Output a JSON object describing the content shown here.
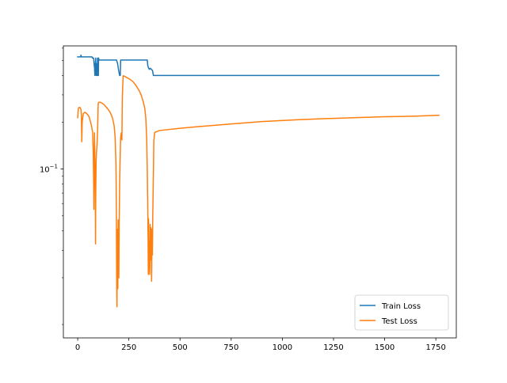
{
  "chart_data": {
    "type": "line",
    "title": "",
    "xlabel": "",
    "ylabel": "",
    "y_scale": "log",
    "xlim": [
      -70,
      1850
    ],
    "ylim": [
      0.0082,
      0.62
    ],
    "x_ticks": [
      0,
      250,
      500,
      750,
      1000,
      1250,
      1500,
      1750
    ],
    "x_tick_labels": [
      "0",
      "250",
      "500",
      "750",
      "1000",
      "1250",
      "1500",
      "1750"
    ],
    "y_major_ticks": [
      0.1
    ],
    "y_tick_labels": [
      {
        "base": "10",
        "exp": "−1"
      }
    ],
    "y_minor_ticks": [
      0.01,
      0.02,
      0.03,
      0.04,
      0.05,
      0.06,
      0.07,
      0.08,
      0.09,
      0.2,
      0.3,
      0.4,
      0.5,
      0.6
    ],
    "grid": false,
    "legend": {
      "position": "lower-right"
    },
    "series": [
      {
        "name": "Train Loss",
        "color": "#1f77b4",
        "points": [
          [
            0,
            0.5268
          ],
          [
            14,
            0.5268
          ],
          [
            16,
            0.541
          ],
          [
            18,
            0.5268
          ],
          [
            70,
            0.5268
          ],
          [
            72,
            0.518
          ],
          [
            78,
            0.518
          ],
          [
            80,
            0.476
          ],
          [
            82,
            0.451
          ],
          [
            84,
            0.4
          ],
          [
            86,
            0.476
          ],
          [
            88,
            0.518
          ],
          [
            90,
            0.4
          ],
          [
            92,
            0.476
          ],
          [
            94,
            0.4
          ],
          [
            96,
            0.4
          ],
          [
            97,
            0.518
          ],
          [
            98,
            0.476
          ],
          [
            99,
            0.4
          ],
          [
            100,
            0.518
          ],
          [
            101,
            0.4
          ],
          [
            102,
            0.518
          ],
          [
            104,
            0.503
          ],
          [
            108,
            0.503
          ],
          [
            110,
            0.503
          ],
          [
            115,
            0.503
          ],
          [
            190,
            0.503
          ],
          [
            195,
            0.476
          ],
          [
            200,
            0.432
          ],
          [
            205,
            0.4
          ],
          [
            208,
            0.4
          ],
          [
            210,
            0.503
          ],
          [
            220,
            0.503
          ],
          [
            340,
            0.503
          ],
          [
            342,
            0.469
          ],
          [
            345,
            0.451
          ],
          [
            350,
            0.438
          ],
          [
            355,
            0.445
          ],
          [
            360,
            0.438
          ],
          [
            365,
            0.432
          ],
          [
            370,
            0.4
          ],
          [
            375,
            0.4
          ],
          [
            1765,
            0.4
          ]
        ]
      },
      {
        "name": "Test Loss",
        "color": "#ff7f0e",
        "points": [
          [
            0,
            0.214
          ],
          [
            3,
            0.245
          ],
          [
            6,
            0.249
          ],
          [
            12,
            0.249
          ],
          [
            16,
            0.241
          ],
          [
            18,
            0.22
          ],
          [
            20,
            0.15
          ],
          [
            22,
            0.202
          ],
          [
            27,
            0.227
          ],
          [
            35,
            0.232
          ],
          [
            45,
            0.227
          ],
          [
            55,
            0.218
          ],
          [
            62,
            0.203
          ],
          [
            68,
            0.188
          ],
          [
            73,
            0.172
          ],
          [
            76,
            0.128
          ],
          [
            78,
            0.081
          ],
          [
            79,
            0.055
          ],
          [
            80,
            0.098
          ],
          [
            81,
            0.129
          ],
          [
            82,
            0.171
          ],
          [
            84,
            0.108
          ],
          [
            86,
            0.068
          ],
          [
            87,
            0.033
          ],
          [
            88,
            0.064
          ],
          [
            90,
            0.112
          ],
          [
            92,
            0.131
          ],
          [
            94,
            0.14
          ],
          [
            96,
            0.16
          ],
          [
            98,
            0.196
          ],
          [
            100,
            0.263
          ],
          [
            103,
            0.269
          ],
          [
            110,
            0.269
          ],
          [
            120,
            0.265
          ],
          [
            130,
            0.259
          ],
          [
            140,
            0.25
          ],
          [
            150,
            0.241
          ],
          [
            160,
            0.23
          ],
          [
            170,
            0.213
          ],
          [
            178,
            0.19
          ],
          [
            183,
            0.16
          ],
          [
            187,
            0.106
          ],
          [
            189,
            0.054
          ],
          [
            190,
            0.025
          ],
          [
            191,
            0.016
          ],
          [
            192,
            0.013
          ],
          [
            193,
            0.026
          ],
          [
            194,
            0.018
          ],
          [
            195,
            0.041
          ],
          [
            196,
            0.017
          ],
          [
            198,
            0.047
          ],
          [
            200,
            0.042
          ],
          [
            201,
            0.02
          ],
          [
            203,
            0.049
          ],
          [
            205,
            0.082
          ],
          [
            208,
            0.128
          ],
          [
            210,
            0.161
          ],
          [
            213,
            0.171
          ],
          [
            216,
            0.154
          ],
          [
            218,
            0.288
          ],
          [
            222,
            0.398
          ],
          [
            230,
            0.395
          ],
          [
            240,
            0.388
          ],
          [
            255,
            0.378
          ],
          [
            270,
            0.365
          ],
          [
            285,
            0.345
          ],
          [
            300,
            0.32
          ],
          [
            310,
            0.3
          ],
          [
            320,
            0.272
          ],
          [
            328,
            0.245
          ],
          [
            333,
            0.21
          ],
          [
            337,
            0.16
          ],
          [
            340,
            0.097
          ],
          [
            342,
            0.062
          ],
          [
            344,
            0.035
          ],
          [
            345,
            0.021
          ],
          [
            346,
            0.048
          ],
          [
            348,
            0.029
          ],
          [
            350,
            0.025
          ],
          [
            352,
            0.021
          ],
          [
            354,
            0.044
          ],
          [
            356,
            0.026
          ],
          [
            358,
            0.042
          ],
          [
            360,
            0.03
          ],
          [
            361,
            0.019
          ],
          [
            362,
            0.024
          ],
          [
            363,
            0.041
          ],
          [
            365,
            0.028
          ],
          [
            367,
            0.052
          ],
          [
            370,
            0.096
          ],
          [
            372,
            0.152
          ],
          [
            376,
            0.172
          ],
          [
            385,
            0.174
          ],
          [
            400,
            0.177
          ],
          [
            500,
            0.183
          ],
          [
            600,
            0.188
          ],
          [
            750,
            0.195
          ],
          [
            900,
            0.202
          ],
          [
            1050,
            0.207
          ],
          [
            1200,
            0.211
          ],
          [
            1350,
            0.214
          ],
          [
            1500,
            0.217
          ],
          [
            1650,
            0.219
          ],
          [
            1765,
            0.222
          ]
        ]
      }
    ]
  }
}
